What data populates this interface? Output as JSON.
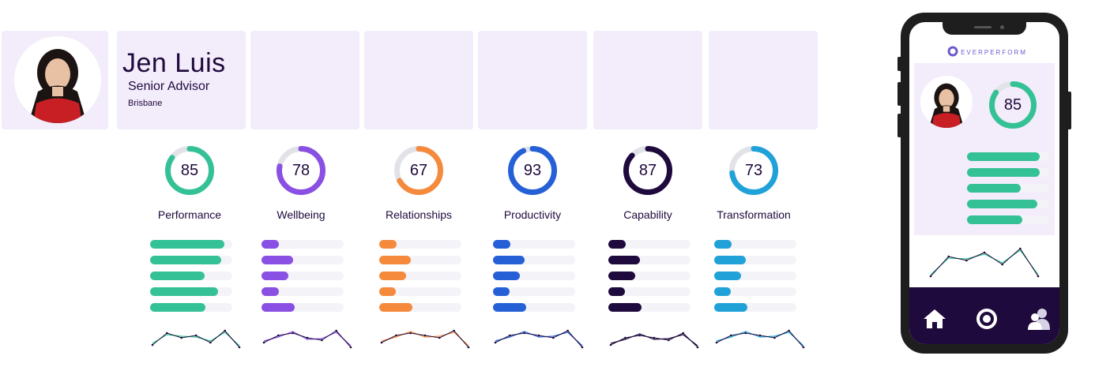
{
  "profile": {
    "name": "Jen Luis",
    "role": "Senior Advisor",
    "location": "Brisbane"
  },
  "metrics": [
    {
      "label": "Performance",
      "score": "85",
      "value": 85,
      "color": "#35c196",
      "bars": [
        0.9,
        0.87,
        0.66,
        0.83,
        0.67
      ],
      "spark": [
        2,
        7,
        5,
        6,
        3,
        8,
        1
      ]
    },
    {
      "label": "Wellbeing",
      "score": "78",
      "value": 78,
      "color": "#8a4fe3",
      "bars": [
        0.21,
        0.38,
        0.33,
        0.21,
        0.4
      ],
      "spark": [
        3,
        6,
        7,
        5,
        4,
        8,
        1
      ]
    },
    {
      "label": "Relationships",
      "score": "67",
      "value": 67,
      "color": "#f58a3d",
      "bars": [
        0.21,
        0.38,
        0.33,
        0.2,
        0.4
      ],
      "spark": [
        3,
        6,
        7,
        6,
        5,
        8,
        1
      ]
    },
    {
      "label": "Productivity",
      "score": "93",
      "value": 93,
      "color": "#2660d6",
      "bars": [
        0.21,
        0.38,
        0.33,
        0.2,
        0.4
      ],
      "spark": [
        3,
        6,
        7,
        6,
        5,
        8,
        1
      ]
    },
    {
      "label": "Capability",
      "score": "87",
      "value": 87,
      "color": "#1e0a3c",
      "bars": [
        0.21,
        0.38,
        0.33,
        0.2,
        0.4
      ],
      "spark": [
        2,
        5,
        6,
        5,
        4,
        7,
        1
      ]
    },
    {
      "label": "Transformation",
      "score": "73",
      "value": 73,
      "color": "#20a2d8",
      "bars": [
        0.21,
        0.38,
        0.33,
        0.2,
        0.4
      ],
      "spark": [
        3,
        6,
        7,
        6,
        5,
        8,
        1
      ]
    }
  ],
  "phone": {
    "brand": "EVERPERFORM",
    "score": "85",
    "value": 85,
    "color": "#35c196",
    "bars": [
      0.88,
      0.88,
      0.65,
      0.86,
      0.67
    ],
    "spark": [
      1,
      6,
      5,
      7,
      4,
      8,
      1
    ],
    "nav": [
      {
        "icon": "home-icon"
      },
      {
        "icon": "target-icon"
      },
      {
        "icon": "people-icon"
      }
    ]
  }
}
